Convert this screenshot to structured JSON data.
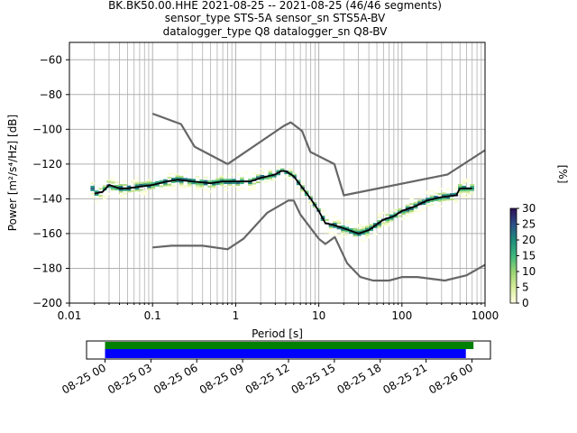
{
  "title_lines": [
    "BK.BK50.00.HHE   2021-08-25 -- 2021-08-25  (46/46 segments)",
    "sensor_type STS-5A sensor_sn STS5A-BV",
    "datalogger_type Q8 datalogger_sn Q8-BV"
  ],
  "chart_data": {
    "type": "heatmap",
    "xlabel": "Period [s]",
    "ylabel": "Power [m²/s⁴/Hz] [dB]",
    "xscale": "log",
    "xlim": [
      0.01,
      1000
    ],
    "ylim": [
      -200,
      -50
    ],
    "xticks": [
      {
        "v": 0.01,
        "label": "0.01"
      },
      {
        "v": 0.1,
        "label": "0.1"
      },
      {
        "v": 1,
        "label": "1"
      },
      {
        "v": 10,
        "label": "10"
      },
      {
        "v": 100,
        "label": "100"
      },
      {
        "v": 1000,
        "label": "1000"
      }
    ],
    "yticks": [
      -60,
      -80,
      -100,
      -120,
      -140,
      -160,
      -180,
      -200
    ],
    "grid": true,
    "colorbar": {
      "label": "[%]",
      "min": 0,
      "max": 30,
      "ticks": [
        0,
        5,
        10,
        15,
        20,
        25,
        30
      ]
    },
    "mode_curve": [
      [
        0.02,
        -137
      ],
      [
        0.025,
        -136
      ],
      [
        0.03,
        -132
      ],
      [
        0.04,
        -134
      ],
      [
        0.05,
        -134
      ],
      [
        0.07,
        -133
      ],
      [
        0.1,
        -132
      ],
      [
        0.15,
        -130
      ],
      [
        0.2,
        -129
      ],
      [
        0.3,
        -130
      ],
      [
        0.5,
        -131
      ],
      [
        0.7,
        -130
      ],
      [
        1,
        -130
      ],
      [
        1.5,
        -130
      ],
      [
        2,
        -128
      ],
      [
        3,
        -126
      ],
      [
        3.5,
        -124
      ],
      [
        4,
        -124
      ],
      [
        5,
        -127
      ],
      [
        6,
        -132
      ],
      [
        8,
        -140
      ],
      [
        10,
        -147
      ],
      [
        12,
        -154
      ],
      [
        15,
        -155
      ],
      [
        20,
        -157
      ],
      [
        30,
        -160
      ],
      [
        40,
        -158
      ],
      [
        60,
        -152
      ],
      [
        80,
        -150
      ],
      [
        100,
        -147
      ],
      [
        150,
        -144
      ],
      [
        200,
        -141
      ],
      [
        300,
        -139
      ],
      [
        450,
        -138
      ],
      [
        500,
        -134
      ],
      [
        700,
        -134
      ]
    ],
    "nhnm": [
      [
        0.1,
        -91
      ],
      [
        0.22,
        -97
      ],
      [
        0.32,
        -110
      ],
      [
        0.8,
        -120
      ],
      [
        3.8,
        -98
      ],
      [
        4.6,
        -96
      ],
      [
        6.3,
        -101
      ],
      [
        7.9,
        -113
      ],
      [
        15.4,
        -120
      ],
      [
        20,
        -138
      ],
      [
        354,
        -126
      ],
      [
        1000,
        -112
      ]
    ],
    "nlnm": [
      [
        0.1,
        -168
      ],
      [
        0.17,
        -167
      ],
      [
        0.4,
        -167
      ],
      [
        0.8,
        -169
      ],
      [
        1.24,
        -163
      ],
      [
        2.4,
        -148
      ],
      [
        4.3,
        -141
      ],
      [
        5,
        -141
      ],
      [
        6,
        -149
      ],
      [
        10,
        -163
      ],
      [
        12,
        -166
      ],
      [
        15.6,
        -162
      ],
      [
        21.9,
        -177
      ],
      [
        31.6,
        -185
      ],
      [
        45,
        -187
      ],
      [
        70,
        -187
      ],
      [
        101,
        -185
      ],
      [
        154,
        -185
      ],
      [
        328,
        -187
      ],
      [
        600,
        -184
      ],
      [
        1000,
        -178
      ]
    ],
    "coverage": {
      "axis_ticks": [
        "08-25 00",
        "08-25 03",
        "08-25 06",
        "08-25 09",
        "08-25 12",
        "08-25 15",
        "08-25 18",
        "08-25 21",
        "08-26 00"
      ],
      "data_available_hours": [
        0,
        24.1
      ],
      "psd_used_hours": [
        0,
        23.6
      ],
      "data_color": "#008000",
      "psd_color": "#0000ff"
    }
  }
}
